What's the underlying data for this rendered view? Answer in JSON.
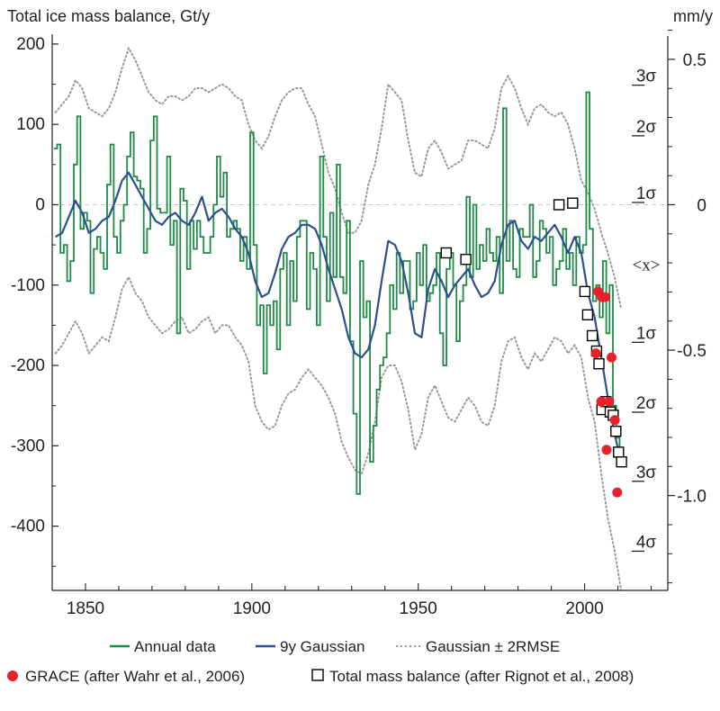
{
  "chart_data": {
    "type": "line",
    "title": "Total ice mass balance, Gt/y",
    "right_axis_title": "mm/y",
    "xlabel": "",
    "ylabel": "Total ice mass balance, Gt/y",
    "xlim": [
      1840,
      2025
    ],
    "ylim": [
      -480,
      210
    ],
    "x_ticks": [
      1850,
      1900,
      1950,
      2000
    ],
    "y_ticks": [
      200,
      100,
      0,
      -100,
      -200,
      -300,
      -400
    ],
    "right_ticks_mm": [
      {
        "value": 0.5,
        "label": "0.5"
      },
      {
        "value": 0,
        "label": "0"
      },
      {
        "value": -0.5,
        "label": "-0.5"
      },
      {
        "value": -1.0,
        "label": "-1.0"
      }
    ],
    "right_ticks_mm_minor": [
      0.6,
      0.4,
      0.3,
      0.2,
      0.1,
      -0.1,
      -0.2,
      -0.3,
      -0.4,
      -0.6,
      -0.7,
      -0.8,
      -0.9,
      -1.1,
      -1.2,
      -1.3
    ],
    "sigma_labels": [
      {
        "y": 160,
        "label": "3σ"
      },
      {
        "y": 97,
        "label": "2σ"
      },
      {
        "y": 14,
        "label": "1σ"
      },
      {
        "y": -75,
        "label": "<x>"
      },
      {
        "y": -160,
        "label": "1σ"
      },
      {
        "y": -247,
        "label": "2σ"
      },
      {
        "y": -333,
        "label": "3σ"
      },
      {
        "y": -420,
        "label": "4σ"
      }
    ],
    "series": [
      {
        "name": "Annual data",
        "color": "#1e8a45",
        "style": "step",
        "x": [
          1841,
          1842,
          1843,
          1844,
          1845,
          1846,
          1847,
          1848,
          1849,
          1850,
          1851,
          1852,
          1853,
          1854,
          1855,
          1856,
          1857,
          1858,
          1859,
          1860,
          1861,
          1862,
          1863,
          1864,
          1865,
          1866,
          1867,
          1868,
          1869,
          1870,
          1871,
          1872,
          1873,
          1874,
          1875,
          1876,
          1877,
          1878,
          1879,
          1880,
          1881,
          1882,
          1883,
          1884,
          1885,
          1886,
          1887,
          1888,
          1889,
          1890,
          1891,
          1892,
          1893,
          1894,
          1895,
          1896,
          1897,
          1898,
          1899,
          1900,
          1901,
          1902,
          1903,
          1904,
          1905,
          1906,
          1907,
          1908,
          1909,
          1910,
          1911,
          1912,
          1913,
          1914,
          1915,
          1916,
          1917,
          1918,
          1919,
          1920,
          1921,
          1922,
          1923,
          1924,
          1925,
          1926,
          1927,
          1928,
          1929,
          1930,
          1931,
          1932,
          1933,
          1934,
          1935,
          1936,
          1937,
          1938,
          1939,
          1940,
          1941,
          1942,
          1943,
          1944,
          1945,
          1946,
          1947,
          1948,
          1949,
          1950,
          1951,
          1952,
          1953,
          1954,
          1955,
          1956,
          1957,
          1958,
          1959,
          1960,
          1961,
          1962,
          1963,
          1964,
          1965,
          1966,
          1967,
          1968,
          1969,
          1970,
          1971,
          1972,
          1973,
          1974,
          1975,
          1976,
          1977,
          1978,
          1979,
          1980,
          1981,
          1982,
          1983,
          1984,
          1985,
          1986,
          1987,
          1988,
          1989,
          1990,
          1991,
          1992,
          1993,
          1994,
          1995,
          1996,
          1997,
          1998,
          1999,
          2000,
          2001,
          2002,
          2003,
          2004,
          2005,
          2006,
          2007,
          2008,
          2009,
          2010,
          2011
        ],
        "values": [
          70,
          75,
          -60,
          -50,
          -95,
          -70,
          50,
          110,
          -30,
          -10,
          -20,
          -110,
          -55,
          -40,
          -60,
          -80,
          25,
          75,
          -40,
          -60,
          -20,
          0,
          60,
          90,
          35,
          30,
          20,
          -60,
          -30,
          80,
          110,
          -5,
          -10,
          -10,
          60,
          -50,
          -20,
          -160,
          20,
          5,
          -80,
          -20,
          -55,
          -20,
          -40,
          -60,
          -60,
          -40,
          0,
          60,
          10,
          40,
          -40,
          -30,
          -20,
          -30,
          -70,
          -40,
          -80,
          90,
          -50,
          -150,
          -125,
          -210,
          -125,
          -150,
          -120,
          -180,
          -80,
          -60,
          -150,
          -70,
          -120,
          -40,
          -20,
          -20,
          -130,
          -60,
          -80,
          -150,
          60,
          -40,
          -120,
          -10,
          -90,
          50,
          -90,
          -110,
          -20,
          -170,
          -260,
          -360,
          -70,
          -140,
          -120,
          -320,
          -275,
          -230,
          -200,
          -190,
          -160,
          -100,
          -130,
          -60,
          -110,
          -70,
          -70,
          -130,
          -120,
          -60,
          -100,
          -50,
          -120,
          -110,
          -100,
          -60,
          -160,
          -200,
          -80,
          -60,
          -100,
          -170,
          -120,
          -100,
          10,
          -90,
          0,
          -80,
          -50,
          -70,
          -30,
          -60,
          -70,
          -40,
          -110,
          120,
          -70,
          -20,
          -80,
          -90,
          -30,
          -40,
          -40,
          0,
          -90,
          -70,
          -20,
          -30,
          -60,
          -40,
          -100,
          -80,
          -70,
          -30,
          -80,
          -60,
          -100,
          -40,
          -60,
          -50,
          140,
          -30,
          -120,
          -100,
          -140,
          -70,
          -160,
          -100,
          -250,
          -290,
          -320
        ]
      },
      {
        "name": "9y Gaussian",
        "color": "#2b4f8f",
        "style": "line",
        "x": [
          1841,
          1843,
          1845,
          1847,
          1849,
          1851,
          1853,
          1855,
          1857,
          1859,
          1861,
          1863,
          1865,
          1867,
          1869,
          1871,
          1873,
          1875,
          1877,
          1879,
          1881,
          1883,
          1885,
          1887,
          1889,
          1891,
          1893,
          1895,
          1897,
          1899,
          1901,
          1903,
          1905,
          1907,
          1909,
          1911,
          1913,
          1915,
          1917,
          1919,
          1921,
          1923,
          1925,
          1927,
          1929,
          1931,
          1933,
          1935,
          1937,
          1939,
          1941,
          1943,
          1945,
          1947,
          1949,
          1951,
          1953,
          1955,
          1957,
          1959,
          1961,
          1963,
          1965,
          1967,
          1969,
          1971,
          1973,
          1975,
          1977,
          1979,
          1981,
          1983,
          1985,
          1987,
          1989,
          1991,
          1993,
          1995,
          1997,
          1999,
          2001,
          2003,
          2005,
          2007,
          2009,
          2011
        ],
        "values": [
          -40,
          -35,
          -15,
          5,
          -10,
          -35,
          -30,
          -20,
          -15,
          5,
          30,
          40,
          25,
          10,
          -5,
          -20,
          -25,
          -15,
          -10,
          -20,
          -25,
          -10,
          10,
          -20,
          -10,
          -5,
          -15,
          -30,
          -40,
          -60,
          -95,
          -115,
          -110,
          -85,
          -55,
          -40,
          -35,
          -25,
          -25,
          -30,
          -50,
          -80,
          -105,
          -130,
          -165,
          -185,
          -190,
          -180,
          -150,
          -95,
          -45,
          -50,
          -70,
          -110,
          -160,
          -165,
          -105,
          -80,
          -95,
          -115,
          -100,
          -90,
          -80,
          -100,
          -115,
          -110,
          -95,
          -50,
          -25,
          -20,
          -45,
          -55,
          -40,
          -45,
          -35,
          -25,
          -40,
          -60,
          -40,
          -60,
          -110,
          -140,
          -190,
          -240,
          -285,
          -320
        ]
      },
      {
        "name": "Gaussian ± 2RMSE",
        "color": "#999999",
        "style": "dotted",
        "x": [
          1841,
          1843,
          1845,
          1847,
          1849,
          1851,
          1853,
          1855,
          1857,
          1859,
          1861,
          1863,
          1865,
          1867,
          1869,
          1871,
          1873,
          1875,
          1877,
          1879,
          1881,
          1883,
          1885,
          1887,
          1889,
          1891,
          1893,
          1895,
          1897,
          1899,
          1901,
          1903,
          1905,
          1907,
          1909,
          1911,
          1913,
          1915,
          1917,
          1919,
          1921,
          1923,
          1925,
          1927,
          1929,
          1931,
          1933,
          1935,
          1937,
          1939,
          1941,
          1943,
          1945,
          1947,
          1949,
          1951,
          1953,
          1955,
          1957,
          1959,
          1961,
          1963,
          1965,
          1967,
          1969,
          1971,
          1973,
          1975,
          1977,
          1979,
          1981,
          1983,
          1985,
          1987,
          1989,
          1991,
          1993,
          1995,
          1997,
          1999,
          2001,
          2003,
          2005,
          2007,
          2009,
          2011
        ],
        "upper": [
          115,
          125,
          135,
          155,
          145,
          120,
          115,
          110,
          120,
          140,
          170,
          195,
          180,
          160,
          140,
          130,
          125,
          135,
          135,
          130,
          135,
          145,
          145,
          140,
          145,
          150,
          145,
          135,
          130,
          100,
          80,
          70,
          85,
          110,
          130,
          140,
          145,
          145,
          125,
          110,
          75,
          40,
          20,
          -10,
          -35,
          -35,
          -20,
          25,
          50,
          95,
          150,
          140,
          130,
          80,
          40,
          35,
          70,
          80,
          65,
          45,
          50,
          55,
          80,
          80,
          75,
          70,
          95,
          145,
          160,
          145,
          120,
          100,
          120,
          125,
          115,
          110,
          115,
          100,
          70,
          30,
          15,
          -5,
          -35,
          -60,
          -90,
          -130
        ],
        "lower": [
          -185,
          -175,
          -160,
          -145,
          -160,
          -185,
          -175,
          -165,
          -170,
          -140,
          -105,
          -90,
          -110,
          -120,
          -140,
          -150,
          -160,
          -155,
          -145,
          -140,
          -160,
          -155,
          -145,
          -140,
          -160,
          -150,
          -150,
          -165,
          -175,
          -195,
          -250,
          -270,
          -280,
          -275,
          -250,
          -235,
          -230,
          -215,
          -205,
          -215,
          -225,
          -240,
          -260,
          -295,
          -315,
          -330,
          -335,
          -310,
          -270,
          -215,
          -200,
          -200,
          -220,
          -255,
          -305,
          -285,
          -240,
          -225,
          -245,
          -265,
          -270,
          -255,
          -240,
          -250,
          -270,
          -275,
          -250,
          -195,
          -170,
          -165,
          -190,
          -205,
          -185,
          -195,
          -180,
          -165,
          -170,
          -185,
          -175,
          -190,
          -240,
          -270,
          -335,
          -390,
          -430,
          -480
        ]
      }
    ],
    "grace": {
      "name": "GRACE (after Wahr et al., 2006)",
      "color": "#e8202a",
      "x": [
        2004.0,
        2005.2,
        2006.2,
        2003.4,
        2005.0,
        2006.6,
        2008.1,
        2007.4,
        2009.1,
        2009.8
      ],
      "values": [
        -108,
        -115,
        -115,
        -185,
        -245,
        -305,
        -190,
        -245,
        -268,
        -358
      ]
    },
    "rignot": {
      "name": "Total mass balance (after Rignot et al., 2008)",
      "color": "#000000",
      "x": [
        1992.3,
        1996.4,
        1958.4,
        1964.3,
        2000.1,
        2000.9,
        2002.3,
        2003.6,
        2004.3,
        2005.2,
        2006.4,
        2007.7,
        2008.6,
        2009.4,
        2010.2,
        2011.1
      ],
      "values": [
        0,
        2,
        -60,
        -68,
        -108,
        -137,
        -163,
        -182,
        -198,
        -255,
        -245,
        -258,
        -262,
        -282,
        -308,
        -320
      ]
    },
    "legend": {
      "annual": "Annual data",
      "gaussian": "9y Gaussian",
      "rmse": "Gaussian ± 2RMSE",
      "grace": "GRACE (after Wahr et al., 2006)",
      "rignot": "Total mass balance (after Rignot et al., 2008)"
    }
  }
}
